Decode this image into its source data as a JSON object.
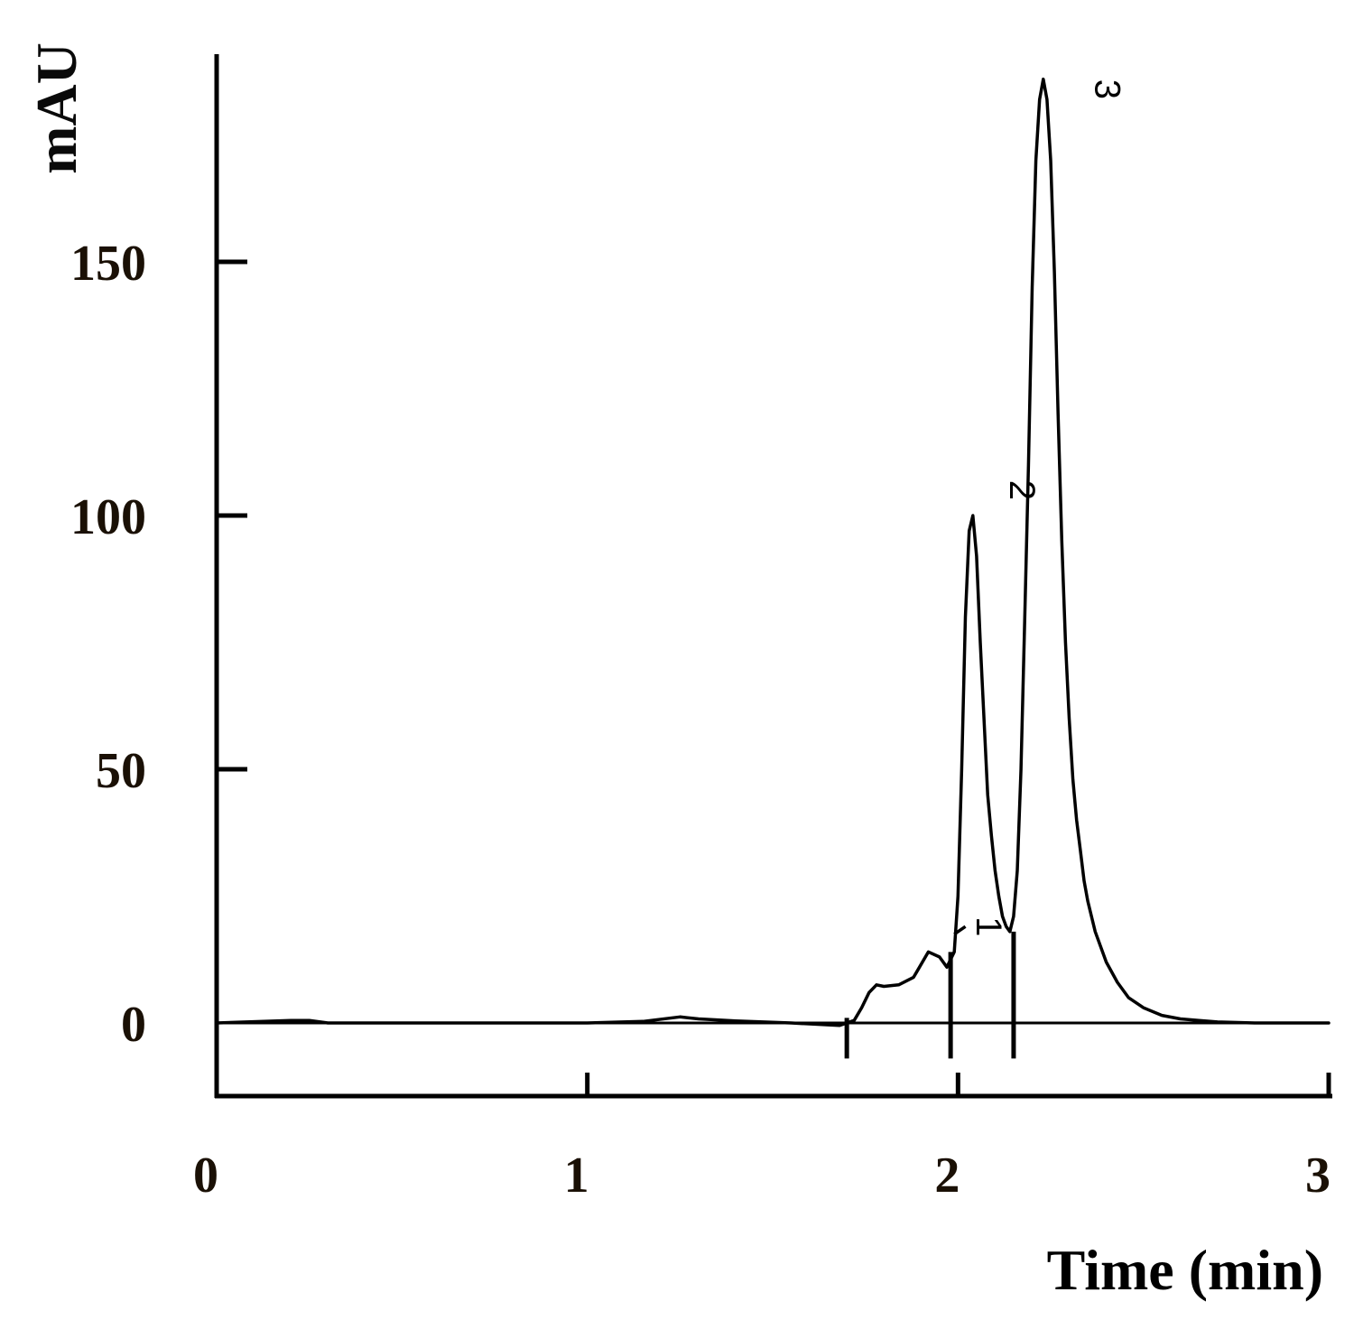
{
  "chart_data": {
    "type": "line",
    "title": "",
    "xlabel": "Time (min)",
    "ylabel": "mAU",
    "xlim": [
      0,
      3
    ],
    "ylim": [
      -15,
      190
    ],
    "xticks": [
      0,
      1,
      2,
      3
    ],
    "yticks": [
      0,
      50,
      100,
      150
    ],
    "x_tick_labels": [
      "0",
      "1",
      "2",
      "3"
    ],
    "y_tick_labels": [
      "0",
      "50",
      "100",
      "150"
    ],
    "grid": false,
    "legend": "none",
    "colors": {
      "trace": "#000000",
      "axis": "#000000",
      "ylabel_text": "#0a0a0a",
      "tick_text": "#1a1005"
    },
    "series": [
      {
        "x": [
          0.0,
          0.2,
          0.25,
          0.3,
          0.6,
          1.0,
          1.15,
          1.25,
          1.3,
          1.4,
          1.55,
          1.68,
          1.72,
          1.74,
          1.76,
          1.78,
          1.8,
          1.84,
          1.88,
          1.92,
          1.95,
          1.97,
          1.99,
          2.0,
          2.01,
          2.02,
          2.03,
          2.04,
          2.05,
          2.06,
          2.07,
          2.08,
          2.09,
          2.1,
          2.11,
          2.12,
          2.13,
          2.14,
          2.15,
          2.16,
          2.17,
          2.18,
          2.19,
          2.2,
          2.21,
          2.22,
          2.23,
          2.24,
          2.25,
          2.26,
          2.27,
          2.28,
          2.29,
          2.3,
          2.31,
          2.32,
          2.33,
          2.34,
          2.35,
          2.37,
          2.4,
          2.43,
          2.46,
          2.5,
          2.55,
          2.6,
          2.65,
          2.7,
          2.8,
          2.9,
          3.0
        ],
        "y": [
          0,
          0.5,
          0.5,
          0,
          0,
          0,
          0.3,
          1.2,
          0.8,
          0.4,
          0,
          -0.5,
          0.5,
          3,
          6,
          7.5,
          7.2,
          7.5,
          9,
          14,
          13,
          11,
          14,
          25,
          50,
          80,
          97,
          100,
          92,
          75,
          60,
          45,
          37,
          30,
          25,
          21,
          19,
          18,
          21,
          30,
          50,
          80,
          110,
          145,
          170,
          182,
          186,
          182,
          170,
          148,
          120,
          95,
          75,
          60,
          48,
          40,
          34,
          28,
          24,
          18,
          12,
          8,
          5,
          3,
          1.5,
          0.8,
          0.5,
          0.2,
          0,
          0,
          0
        ]
      }
    ],
    "baseline": [
      0,
      0
    ],
    "integration_marks": [
      {
        "x": 1.7,
        "from": -7,
        "to": 1
      },
      {
        "x": 1.98,
        "from": -7,
        "to": 14
      },
      {
        "x": 2.15,
        "from": -7,
        "to": 18
      }
    ],
    "annotations": [
      {
        "text": "1",
        "x": 2.05,
        "y": 19
      },
      {
        "text": "2",
        "x": 2.14,
        "y": 105
      },
      {
        "text": "3",
        "x": 2.37,
        "y": 184
      }
    ]
  }
}
